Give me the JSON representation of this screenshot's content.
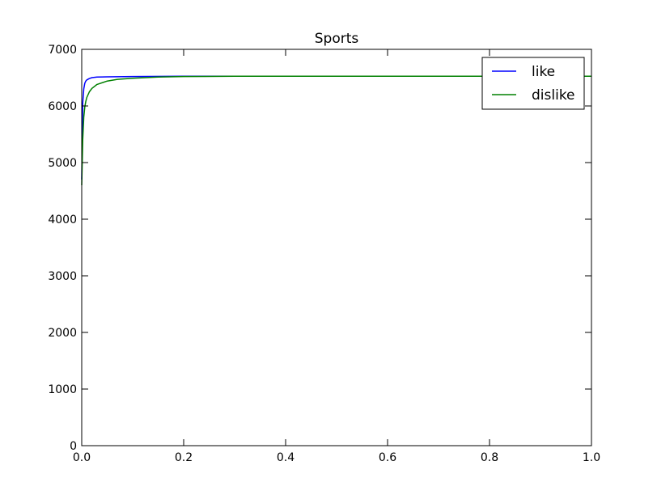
{
  "chart_data": {
    "type": "line",
    "title": "Sports",
    "xlabel": "",
    "ylabel": "",
    "xlim": [
      0.0,
      1.0
    ],
    "ylim": [
      0,
      7000
    ],
    "xticks": [
      "0.0",
      "0.2",
      "0.4",
      "0.6",
      "0.8",
      "1.0"
    ],
    "yticks": [
      "0",
      "1000",
      "2000",
      "3000",
      "4000",
      "5000",
      "6000",
      "7000"
    ],
    "grid": false,
    "legend_position": "top-right",
    "series": [
      {
        "name": "like",
        "color": "#0000ff",
        "x": [
          0.0,
          0.002,
          0.004,
          0.006,
          0.008,
          0.01,
          0.015,
          0.02,
          0.03,
          0.05,
          0.1,
          0.2,
          0.3,
          0.4,
          0.5,
          0.6,
          0.7,
          0.8,
          0.9,
          1.0
        ],
        "y": [
          4700,
          6050,
          6300,
          6400,
          6440,
          6460,
          6485,
          6500,
          6510,
          6515,
          6520,
          6525,
          6525,
          6525,
          6525,
          6525,
          6525,
          6525,
          6525,
          6525
        ]
      },
      {
        "name": "dislike",
        "color": "#008000",
        "x": [
          0.0,
          0.002,
          0.004,
          0.006,
          0.008,
          0.01,
          0.015,
          0.02,
          0.03,
          0.05,
          0.07,
          0.1,
          0.15,
          0.2,
          0.3,
          0.4,
          0.5,
          0.6,
          0.7,
          0.8,
          0.9,
          1.0
        ],
        "y": [
          4600,
          5400,
          5800,
          5980,
          6080,
          6150,
          6250,
          6310,
          6380,
          6440,
          6470,
          6490,
          6510,
          6520,
          6525,
          6525,
          6525,
          6525,
          6525,
          6525,
          6525,
          6525
        ]
      }
    ]
  }
}
